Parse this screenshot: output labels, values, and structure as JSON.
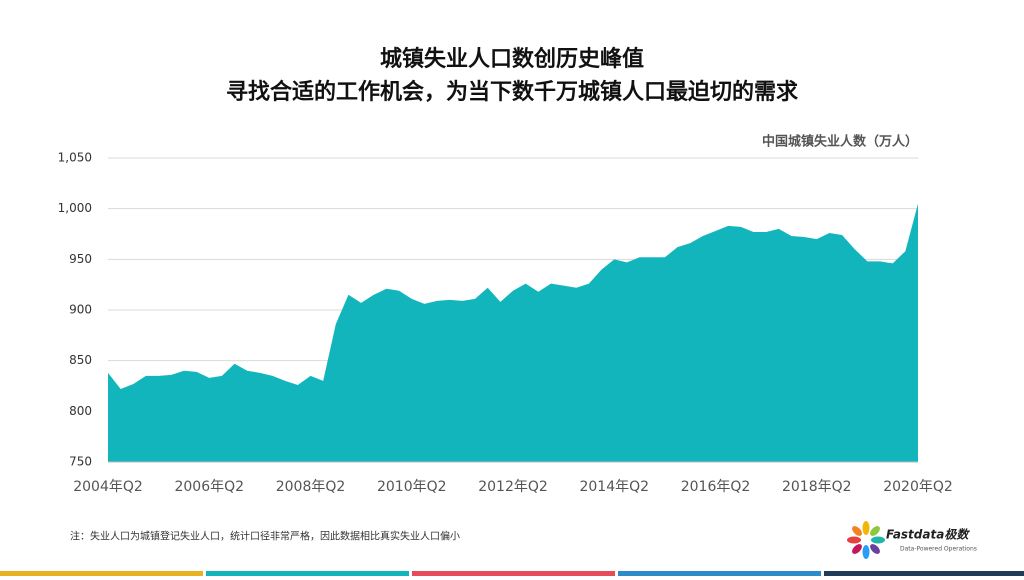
{
  "chart_data": {
    "type": "area",
    "title": [
      "城镇失业人口数创历史峰值",
      "寻找合适的工作机会，为当下数千万城镇人口最迫切的需求"
    ],
    "y_label": "中国城镇失业人数（万人）",
    "categories": [
      "2004年Q2",
      null,
      null,
      null,
      null,
      null,
      null,
      null,
      "2006年Q2",
      null,
      null,
      null,
      null,
      null,
      null,
      null,
      "2008年Q2",
      null,
      null,
      null,
      null,
      null,
      null,
      null,
      "2010年Q2",
      null,
      null,
      null,
      null,
      null,
      null,
      null,
      "2012年Q2",
      null,
      null,
      null,
      null,
      null,
      null,
      null,
      "2014年Q2",
      null,
      null,
      null,
      null,
      null,
      null,
      null,
      "2016年Q2",
      null,
      null,
      null,
      null,
      null,
      null,
      null,
      "2018年Q2",
      null,
      null,
      null,
      null,
      null,
      null,
      null,
      "2020年Q2"
    ],
    "series": [
      {
        "name": "中国城镇失业人数（万人）",
        "color": "#13b5bd",
        "values": [
          838,
          822,
          827,
          835,
          835,
          836,
          840,
          839,
          833,
          835,
          847,
          840,
          838,
          835,
          830,
          826,
          835,
          830,
          886,
          915,
          907,
          915,
          921,
          919,
          911,
          906,
          909,
          910,
          909,
          911,
          922,
          908,
          919,
          926,
          918,
          926,
          924,
          922,
          926,
          940,
          950,
          947,
          952,
          952,
          952,
          962,
          966,
          973,
          978,
          983,
          982,
          977,
          977,
          980,
          973,
          972,
          970,
          976,
          974,
          960,
          948,
          948,
          946,
          958,
          1005
        ]
      }
    ],
    "ylim": [
      750,
      1050
    ],
    "yticks": [
      750,
      800,
      850,
      900,
      950,
      {
        "value": 1000,
        "label": "1,000"
      },
      {
        "value": 1050,
        "label": "1,050"
      }
    ],
    "grid": true,
    "note": "注：失业人口为城镇登记失业人口，统计口径非常严格，因此数据相比真实失业人口偏小"
  },
  "logo": {
    "name": "Fastdata极数",
    "tagline": "Data-Powered Operations"
  }
}
